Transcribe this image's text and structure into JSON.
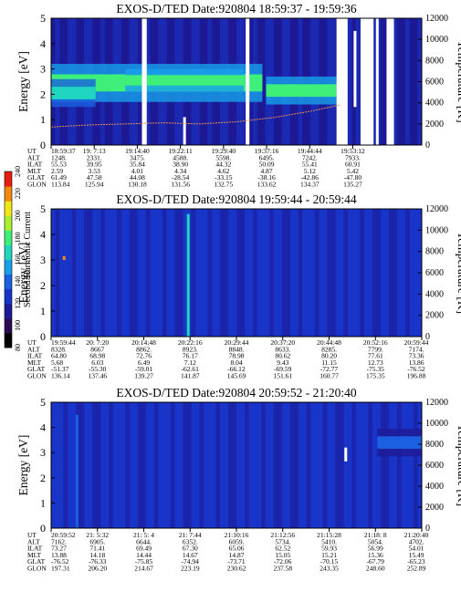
{
  "colorscale": [
    "#000000",
    "#2a0a50",
    "#1e1a96",
    "#1a34c8",
    "#1a60e0",
    "#18a0ea",
    "#20d6c0",
    "#3ef07a",
    "#a8f030",
    "#f0e618",
    "#f08a10",
    "#e81e10"
  ],
  "colorbar": {
    "label": "Second Harmonic Current",
    "ticks": [
      "80",
      "100",
      "120",
      "140",
      "160",
      "180",
      "200",
      "220",
      "240"
    ]
  },
  "chart_data": [
    {
      "type": "heatmap",
      "title": "EXOS-D/TED   Date:920804   18:59:37 - 19:59:36",
      "ylabel": "Energy [eV]",
      "ylabel_right": "Temperature [K]",
      "ylim": [
        0,
        5
      ],
      "y_ticks": [
        "0",
        "1",
        "2",
        "3",
        "4",
        "5"
      ],
      "ylim_right": [
        0,
        12000
      ],
      "y_ticks_right": [
        "0",
        "2000",
        "4000",
        "6000",
        "8000",
        "10000",
        "12000"
      ],
      "background_level": 0.22,
      "bands": [
        {
          "x0": 0.0,
          "x1": 0.57,
          "y": 2.45,
          "width": 0.75,
          "level": 0.62
        },
        {
          "x0": 0.0,
          "x1": 0.12,
          "y": 2.05,
          "width": 0.55,
          "level": 0.52
        },
        {
          "x0": 0.2,
          "x1": 0.52,
          "y": 2.55,
          "width": 0.45,
          "level": 0.64
        },
        {
          "x0": 0.58,
          "x1": 0.77,
          "y": 2.15,
          "width": 0.55,
          "level": 0.6
        }
      ],
      "gaps": [
        [
          0.245,
          0.258
        ],
        [
          0.525,
          0.535
        ],
        [
          0.77,
          0.8
        ],
        [
          0.835,
          0.87
        ],
        [
          0.905,
          0.925
        ]
      ],
      "spikes": [
        {
          "x": 0.36,
          "y0": 0.0,
          "y1": 1.1,
          "level": 1.0
        },
        {
          "x": 0.53,
          "y0": 0.0,
          "y1": 1.4,
          "level": 1.0
        },
        {
          "x": 0.82,
          "y0": 1.5,
          "y1": 4.5,
          "level": 1.0
        },
        {
          "x": 0.88,
          "y0": 0.0,
          "y1": 5.0,
          "level": 1.0
        }
      ],
      "temperature_line": {
        "x": [
          0.0,
          0.1,
          0.2,
          0.3,
          0.4,
          0.5,
          0.6,
          0.7,
          0.78
        ],
        "y": [
          1700,
          1900,
          2000,
          2100,
          2000,
          2200,
          2600,
          3200,
          3800
        ],
        "color": "#e89050"
      },
      "orbit": {
        "labels": [
          "UT",
          "ALT",
          "ILAT",
          "MLT",
          "GLAT",
          "GLON"
        ],
        "columns": [
          [
            "18:59:37",
            "1248.",
            "55.53",
            "2.59",
            "61.49",
            "113.84"
          ],
          [
            "19: 7:13",
            "2331.",
            "39.95",
            "3.53",
            "47.58",
            "125.94"
          ],
          [
            "19:14:40",
            "3475.",
            "35.84",
            "4.01",
            "44.08",
            "130.18"
          ],
          [
            "19:22:11",
            "4588.",
            "38.90",
            "4.34",
            "-28.54",
            "131.56"
          ],
          [
            "19:29:40",
            "5598.",
            "44.32",
            "4.62",
            "-33.15",
            "132.75"
          ],
          [
            "19:37:16",
            "6495.",
            "50.09",
            "4.87",
            "-38.16",
            "133.62"
          ],
          [
            "19:44:44",
            "7242.",
            "55.41",
            "5.12",
            "-42.86",
            "134.37"
          ],
          [
            "19:53:12",
            "7933.",
            "60.91",
            "5.42",
            "-47.80",
            "135.27"
          ]
        ]
      }
    },
    {
      "type": "heatmap",
      "title": "EXOS-D/TED   Date:920804   19:59:44 - 20:59:44",
      "ylabel": "Energy [eV]",
      "ylabel_right": "Temperature [K]",
      "ylim": [
        0,
        5
      ],
      "y_ticks": [
        "0",
        "1",
        "2",
        "3",
        "4",
        "5"
      ],
      "ylim_right": [
        0,
        12000
      ],
      "y_ticks_right": [
        "0",
        "2000",
        "4000",
        "6000",
        "8000",
        "10000",
        "12000"
      ],
      "background_level": 0.25,
      "bands": [],
      "gaps": [],
      "spikes": [
        {
          "x": 0.37,
          "y0": 0.0,
          "y1": 4.8,
          "level": 0.55
        },
        {
          "x": 0.035,
          "y0": 3.0,
          "y1": 3.15,
          "level": 0.9
        }
      ],
      "temperature_line": null,
      "orbit": {
        "labels": [
          "UT",
          "ALT",
          "ILAT",
          "MLT",
          "GLAT",
          "GLON"
        ],
        "columns": [
          [
            "19:59:44",
            "8328.",
            "64.80",
            "5.68",
            "-51.37",
            "136.14"
          ],
          [
            "20: 7:20",
            "8667",
            "68.98",
            "6.03",
            "-55.30",
            "137.46"
          ],
          [
            "20:14:48",
            "8862.",
            "72.76",
            "6.49",
            "-59.01",
            "139.27"
          ],
          [
            "20:22:16",
            "8923.",
            "76.17",
            "7.12",
            "-62.61",
            "141.87"
          ],
          [
            "20:29:44",
            "8848.",
            "78.98",
            "8.04",
            "-66.12",
            "145.69"
          ],
          [
            "20:37:20",
            "8633.",
            "80.62",
            "9.43",
            "-69.59",
            "151.61"
          ],
          [
            "20:44:48",
            "8285.",
            "80.20",
            "11.15",
            "-72.77",
            "160.77"
          ],
          [
            "20:52:16",
            "7799.",
            "77.61",
            "12.73",
            "-75.35",
            "175.35"
          ],
          [
            "20:59:44",
            "7174.",
            "73.36",
            "13.86",
            "-76.52",
            "196.88"
          ]
        ]
      }
    },
    {
      "type": "heatmap",
      "title": "EXOS-D/TED   Date:920804   20:59:52 - 21:20:40",
      "ylabel": "Energy [eV]",
      "ylabel_right": "Temperature [K]",
      "ylim": [
        0,
        5
      ],
      "y_ticks": [
        "0",
        "1",
        "2",
        "3",
        "4",
        "5"
      ],
      "ylim_right": [
        0,
        12000
      ],
      "y_ticks_right": [
        "0",
        "2000",
        "4000",
        "6000",
        "8000",
        "10000",
        "12000"
      ],
      "background_level": 0.25,
      "bands": [
        {
          "x0": 0.88,
          "x1": 1.0,
          "y": 3.4,
          "width": 0.55,
          "level": 0.32
        }
      ],
      "gaps": [],
      "spikes": [
        {
          "x": 0.795,
          "y0": 2.65,
          "y1": 3.2,
          "level": 1.0
        },
        {
          "x": 0.07,
          "y0": 0.0,
          "y1": 4.5,
          "level": 0.4
        }
      ],
      "temperature_line": null,
      "orbit": {
        "labels": [
          "UT",
          "ALT",
          "ILAT",
          "MLT",
          "GLAT",
          "GLON"
        ],
        "columns": [
          [
            "20:59:52",
            "7162.",
            "73.27",
            "13.88",
            "-76.52",
            "197.31"
          ],
          [
            "21: 5:32",
            "6905.",
            "71.41",
            "14.18",
            "-76.33",
            "206.20"
          ],
          [
            "21: 5: 4",
            "6644.",
            "69.49",
            "14.44",
            "-75.85",
            "214.67"
          ],
          [
            "21: 7:44",
            "6352.",
            "67.30",
            "14.67",
            "-74.94",
            "223.19"
          ],
          [
            "21:10:16",
            "6059.",
            "65.06",
            "14.87",
            "-73.71",
            "230.62"
          ],
          [
            "21:12:56",
            "5734.",
            "62.52",
            "15.05",
            "-72.06",
            "237.58"
          ],
          [
            "21:15:28",
            "5410.",
            "59.93",
            "15.21",
            "-70.15",
            "243.35"
          ],
          [
            "21:18: 8",
            "5054.",
            "56.99",
            "15.36",
            "-67.79",
            "248.60"
          ],
          [
            "21:20:40",
            "4702.",
            "54.01",
            "15.49",
            "-65.23",
            "252.89"
          ]
        ]
      }
    }
  ]
}
